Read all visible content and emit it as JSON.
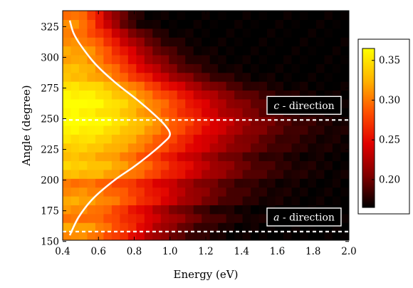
{
  "chart_data": {
    "type": "heatmap",
    "title": "",
    "xlabel": "Energy  (eV)",
    "ylabel": "Angle (degree)",
    "xlim": [
      0.4,
      2.0
    ],
    "ylim": [
      151,
      338
    ],
    "x_ticks": [
      "0.4",
      "0.6",
      "0.8",
      "1.0",
      "1.2",
      "1.4",
      "1.6",
      "1.8",
      "2.0"
    ],
    "y_ticks": [
      "150",
      "175",
      "200",
      "225",
      "250",
      "275",
      "300",
      "325"
    ],
    "colorbar": {
      "range": [
        0.165,
        0.365
      ],
      "ticks": [
        "0.20",
        "0.25",
        "0.30",
        "0.35"
      ],
      "colormap": "hot",
      "colors": [
        "#000000",
        "#800000",
        "#e00000",
        "#ff5000",
        "#ffb400",
        "#ffff00"
      ]
    },
    "x_bins": {
      "start": 0.4,
      "step": 0.0457,
      "count": 35
    },
    "y_bins": {
      "start": 151,
      "step": 7.19,
      "count": 26
    },
    "row_peak_values": [
      0.31,
      0.32,
      0.3,
      0.31,
      0.32,
      0.31,
      0.3,
      0.33,
      0.34,
      0.33,
      0.34,
      0.35,
      0.36,
      0.37,
      0.36,
      0.37,
      0.36,
      0.35,
      0.33,
      0.33,
      0.32,
      0.32,
      0.31,
      0.3,
      0.31,
      0.3
    ],
    "row_tail_reach_eV": [
      1.05,
      1.08,
      1.2,
      1.1,
      1.25,
      1.3,
      1.3,
      1.4,
      1.4,
      1.35,
      1.45,
      1.45,
      1.5,
      1.5,
      1.45,
      1.4,
      1.35,
      1.25,
      1.15,
      1.05,
      1.0,
      0.95,
      0.9,
      0.85,
      0.75,
      0.75
    ],
    "fit_curve": {
      "color": "#ffffff",
      "angles": [
        155,
        170,
        185,
        200,
        210,
        220,
        230,
        237,
        245,
        255,
        265,
        280,
        295,
        310,
        320,
        330
      ],
      "energies": [
        0.44,
        0.49,
        0.57,
        0.69,
        0.79,
        0.88,
        0.96,
        1.0,
        0.97,
        0.9,
        0.82,
        0.69,
        0.58,
        0.5,
        0.46,
        0.44
      ]
    },
    "annotations": [
      {
        "label_italic": "c",
        "label_rest": " - direction",
        "angle": 249
      },
      {
        "label_italic": "a",
        "label_rest": " - direction",
        "angle": 158
      }
    ]
  }
}
